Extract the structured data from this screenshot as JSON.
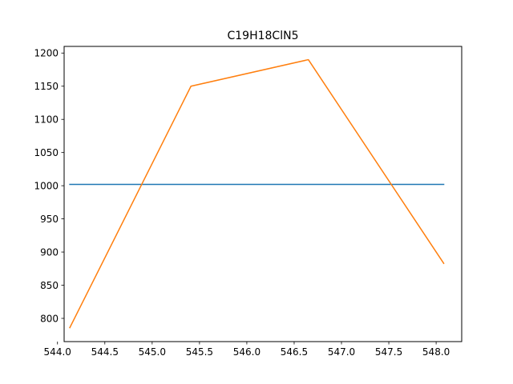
{
  "chart_data": {
    "type": "line",
    "title": "C19H18ClN5",
    "xlabel": "",
    "ylabel": "",
    "xlim": [
      544.07,
      548.27
    ],
    "ylim": [
      765,
      1210
    ],
    "xticks": [
      544.0,
      544.5,
      545.0,
      545.5,
      546.0,
      546.5,
      547.0,
      547.5,
      548.0
    ],
    "xtick_labels": [
      "544.0",
      "544.5",
      "545.0",
      "545.5",
      "546.0",
      "546.5",
      "547.0",
      "547.5",
      "548.0"
    ],
    "yticks": [
      800,
      850,
      900,
      950,
      1000,
      1050,
      1100,
      1150,
      1200
    ],
    "ytick_labels": [
      "800",
      "850",
      "900",
      "950",
      "1000",
      "1050",
      "1100",
      "1150",
      "1200"
    ],
    "grid": false,
    "series": [
      {
        "color": "#1f77b4",
        "x": [
          544.13,
          548.08
        ],
        "y": [
          1002,
          1002
        ]
      },
      {
        "color": "#ff7f0e",
        "x": [
          544.13,
          545.41,
          546.65,
          548.08
        ],
        "y": [
          786,
          1150,
          1190,
          883
        ]
      }
    ]
  }
}
